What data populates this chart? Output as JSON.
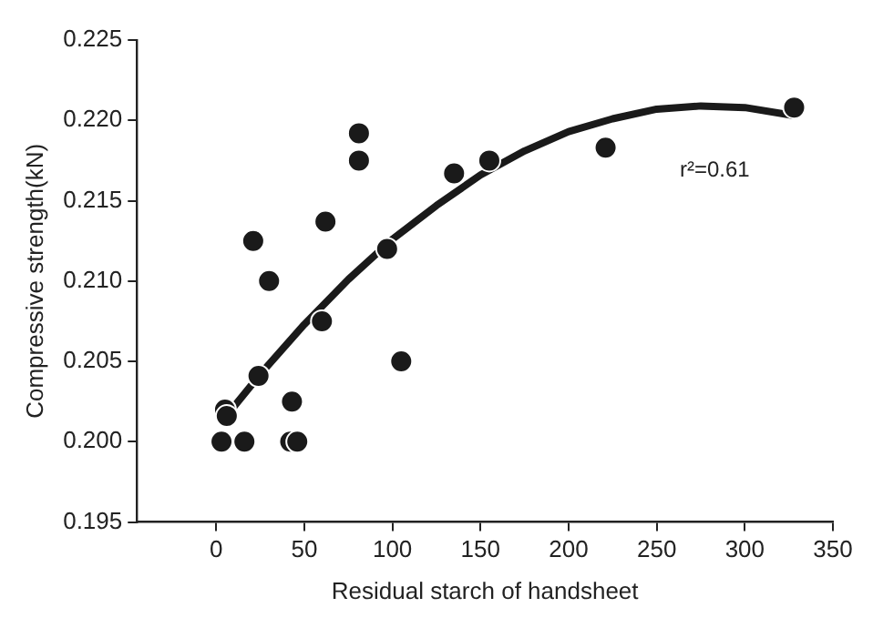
{
  "chart_data": {
    "type": "scatter",
    "xlabel": "Residual starch of handsheet",
    "ylabel": "Compressive strength(kN)",
    "annotations": [
      "r²=0.61"
    ],
    "xlim": [
      -45,
      350
    ],
    "xticks": [
      0,
      50,
      100,
      150,
      200,
      250,
      300,
      350
    ],
    "ylim": [
      0.195,
      0.225
    ],
    "yticks": [
      0.195,
      {
        "value": 0.2,
        "label": "0.200"
      },
      0.205,
      {
        "value": 0.21,
        "label": "0.210"
      },
      0.215,
      {
        "value": 0.22,
        "label": "0.220"
      },
      0.225
    ],
    "grid": false,
    "legend": false,
    "marker": "circle",
    "series": [
      {
        "color": "#1a1a1a",
        "x": [
          3,
          16,
          42,
          46,
          5,
          6,
          24,
          21,
          30,
          43,
          60,
          62,
          81,
          81,
          97,
          105,
          135,
          155,
          221,
          328
        ],
        "values": [
          0.2,
          0.2,
          0.2,
          0.2,
          0.202,
          0.2016,
          0.2041,
          0.2125,
          0.21,
          0.2025,
          0.2075,
          0.2137,
          0.2175,
          0.2192,
          0.212,
          0.205,
          0.2167,
          0.2175,
          0.2183,
          0.2208
        ]
      },
      {
        "type": "line",
        "color": "#1a1a1a",
        "marker": "none",
        "line_style": "solid",
        "x": [
          5,
          25,
          50,
          75,
          100,
          125,
          150,
          175,
          200,
          225,
          250,
          275,
          300,
          328
        ],
        "values": [
          0.2015,
          0.2042,
          0.2073,
          0.2101,
          0.2126,
          0.2147,
          0.2166,
          0.2181,
          0.2193,
          0.2201,
          0.2207,
          0.2209,
          0.2208,
          0.2203
        ]
      }
    ]
  }
}
